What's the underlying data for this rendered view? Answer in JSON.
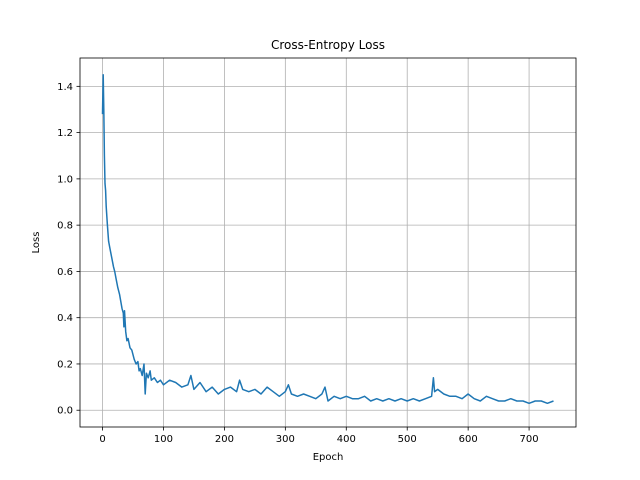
{
  "chart_data": {
    "type": "line",
    "title": "Cross-Entropy Loss",
    "xlabel": "Epoch",
    "ylabel": "Loss",
    "xlim": [
      -37,
      777
    ],
    "ylim": [
      -0.0725,
      1.5225
    ],
    "xticks": [
      0,
      100,
      200,
      300,
      400,
      500,
      600,
      700
    ],
    "yticks": [
      0.0,
      0.2,
      0.4,
      0.6,
      0.8,
      1.0,
      1.2,
      1.4
    ],
    "ytick_labels": [
      "0.0",
      "0.2",
      "0.4",
      "0.6",
      "0.8",
      "1.0",
      "1.2",
      "1.4"
    ],
    "grid": true,
    "legend": "none",
    "series": [
      {
        "color": "#1f77b4",
        "x": [
          0,
          1,
          2,
          3,
          4,
          5,
          6,
          8,
          10,
          12,
          15,
          18,
          20,
          22,
          25,
          28,
          30,
          32,
          34,
          35,
          36,
          38,
          40,
          42,
          45,
          48,
          50,
          52,
          55,
          58,
          60,
          62,
          65,
          68,
          70,
          72,
          75,
          78,
          80,
          85,
          90,
          95,
          100,
          110,
          120,
          130,
          140,
          145,
          150,
          160,
          170,
          180,
          190,
          200,
          210,
          220,
          225,
          230,
          240,
          250,
          260,
          270,
          280,
          290,
          300,
          305,
          310,
          320,
          330,
          340,
          350,
          360,
          365,
          370,
          380,
          390,
          400,
          410,
          420,
          430,
          440,
          450,
          460,
          470,
          480,
          490,
          500,
          510,
          520,
          530,
          540,
          543,
          545,
          550,
          560,
          570,
          580,
          590,
          600,
          610,
          620,
          630,
          640,
          650,
          660,
          670,
          680,
          690,
          700,
          710,
          720,
          730,
          740
        ],
        "y": [
          1.28,
          1.45,
          1.3,
          1.1,
          0.98,
          0.95,
          0.88,
          0.8,
          0.73,
          0.7,
          0.66,
          0.62,
          0.6,
          0.57,
          0.53,
          0.5,
          0.47,
          0.44,
          0.42,
          0.36,
          0.43,
          0.34,
          0.3,
          0.31,
          0.27,
          0.26,
          0.24,
          0.22,
          0.2,
          0.21,
          0.17,
          0.18,
          0.15,
          0.2,
          0.07,
          0.16,
          0.14,
          0.17,
          0.13,
          0.14,
          0.12,
          0.13,
          0.11,
          0.13,
          0.12,
          0.1,
          0.11,
          0.15,
          0.09,
          0.12,
          0.08,
          0.1,
          0.07,
          0.09,
          0.1,
          0.08,
          0.13,
          0.09,
          0.08,
          0.09,
          0.07,
          0.1,
          0.08,
          0.06,
          0.08,
          0.11,
          0.07,
          0.06,
          0.07,
          0.06,
          0.05,
          0.07,
          0.1,
          0.04,
          0.06,
          0.05,
          0.06,
          0.05,
          0.05,
          0.06,
          0.04,
          0.05,
          0.04,
          0.05,
          0.04,
          0.05,
          0.04,
          0.05,
          0.04,
          0.05,
          0.06,
          0.14,
          0.08,
          0.09,
          0.07,
          0.06,
          0.06,
          0.05,
          0.07,
          0.05,
          0.04,
          0.06,
          0.05,
          0.04,
          0.04,
          0.05,
          0.04,
          0.04,
          0.03,
          0.04,
          0.04,
          0.03,
          0.04
        ]
      }
    ]
  }
}
